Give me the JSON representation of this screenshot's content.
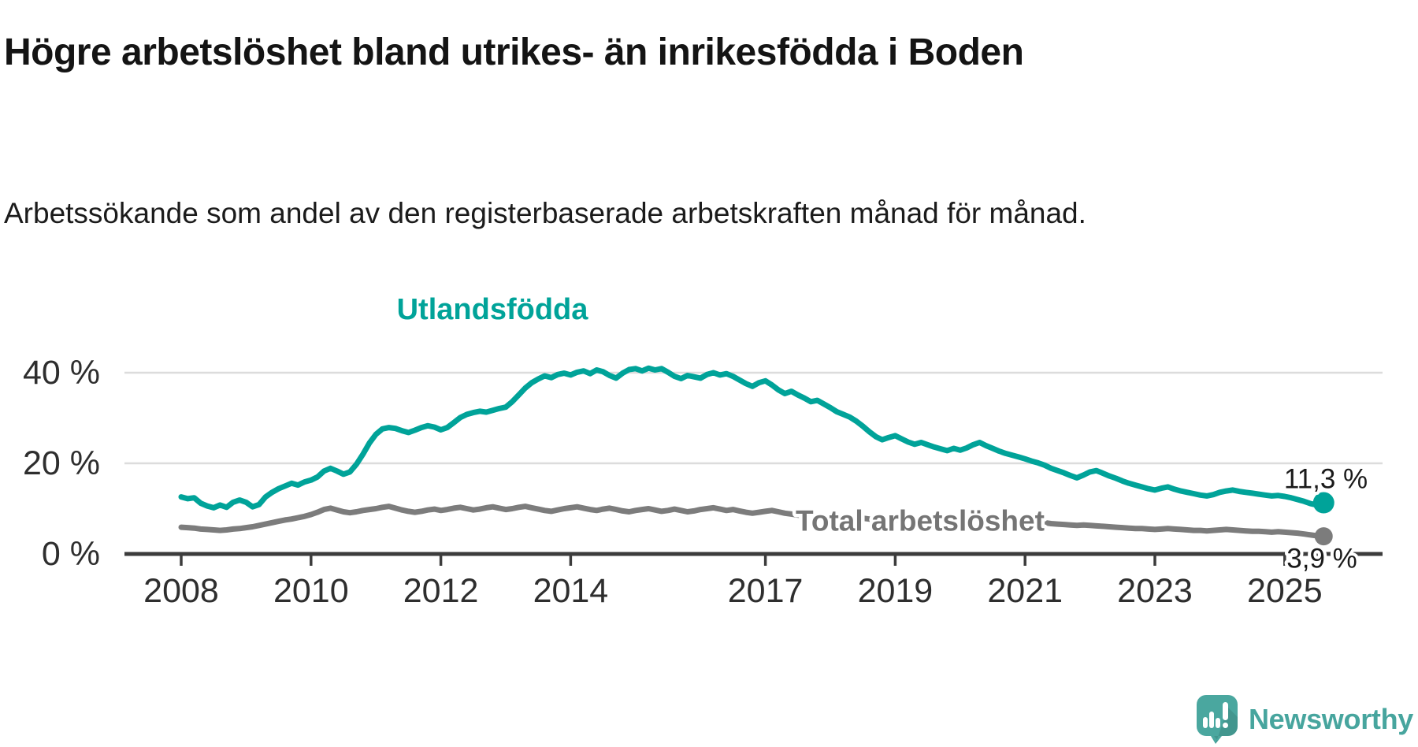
{
  "header": {
    "title": "Högre arbetslöshet bland utrikes- än inrikesfödda i Boden",
    "subtitle": "Arbetssökande som andel av den registerbaserade arbetskraften månad för månad."
  },
  "footer": {
    "brand": "Newsworthy",
    "brand_color": "#47a59e",
    "logo_icon": "newsworthy-speech-bubble-bar-chart-icon"
  },
  "chart_data": {
    "type": "line",
    "title": "Högre arbetslöshet bland utrikes- än inrikesfödda i Boden",
    "xlabel": "",
    "ylabel": "Arbetssökande som andel av den registerbaserade arbetskraften (%)",
    "grid": "horizontal",
    "legend_position": "inline-labels",
    "x_axis": {
      "unit": "year",
      "range": [
        2008,
        2025.6
      ],
      "ticks": [
        2008,
        2010,
        2012,
        2014,
        2017,
        2019,
        2021,
        2023,
        2025
      ]
    },
    "y_axis": {
      "unit": "%",
      "range": [
        0,
        45
      ],
      "ticks": [
        {
          "value": 0,
          "label": "0 %"
        },
        {
          "value": 20,
          "label": "20 %"
        },
        {
          "value": 40,
          "label": "40 %"
        }
      ]
    },
    "colors": {
      "grid": "#dcdcdc",
      "axis": "#3c3c3c",
      "tick_label": "#2e2e2e",
      "end_label": "#1a1a1a"
    },
    "series": [
      {
        "name": "Utlandsfödda",
        "color": "#00a399",
        "label_color": "#00a399",
        "end_label": "11,3 %",
        "end_value": 11.3,
        "x_start": 2008.0,
        "x_step": 0.1,
        "values": [
          12.6,
          12.2,
          12.4,
          11.2,
          10.6,
          10.2,
          10.8,
          10.3,
          11.4,
          11.9,
          11.4,
          10.4,
          10.9,
          12.6,
          13.6,
          14.4,
          15.0,
          15.6,
          15.2,
          15.9,
          16.3,
          17.0,
          18.3,
          18.9,
          18.3,
          17.6,
          18.1,
          19.8,
          22.0,
          24.5,
          26.4,
          27.6,
          27.9,
          27.7,
          27.2,
          26.8,
          27.3,
          27.9,
          28.3,
          28.0,
          27.4,
          27.9,
          29.0,
          30.1,
          30.8,
          31.2,
          31.5,
          31.3,
          31.7,
          32.1,
          32.4,
          33.6,
          35.1,
          36.6,
          37.8,
          38.6,
          39.3,
          38.9,
          39.6,
          39.9,
          39.5,
          40.1,
          40.4,
          39.8,
          40.6,
          40.2,
          39.4,
          38.8,
          39.9,
          40.7,
          40.9,
          40.4,
          41.0,
          40.6,
          40.9,
          40.1,
          39.2,
          38.7,
          39.4,
          39.1,
          38.8,
          39.6,
          40.0,
          39.5,
          39.8,
          39.2,
          38.4,
          37.6,
          37.0,
          37.8,
          38.2,
          37.3,
          36.2,
          35.4,
          35.9,
          35.1,
          34.4,
          33.6,
          33.9,
          33.1,
          32.3,
          31.4,
          30.8,
          30.2,
          29.3,
          28.2,
          27.0,
          25.9,
          25.2,
          25.7,
          26.1,
          25.4,
          24.7,
          24.2,
          24.6,
          24.1,
          23.6,
          23.2,
          22.8,
          23.3,
          22.9,
          23.4,
          24.1,
          24.6,
          23.9,
          23.3,
          22.7,
          22.2,
          21.8,
          21.4,
          21.0,
          20.5,
          20.1,
          19.6,
          18.9,
          18.4,
          17.9,
          17.3,
          16.8,
          17.4,
          18.1,
          18.4,
          17.8,
          17.2,
          16.7,
          16.1,
          15.6,
          15.2,
          14.8,
          14.4,
          14.1,
          14.5,
          14.8,
          14.3,
          13.9,
          13.6,
          13.3,
          13.0,
          12.8,
          13.1,
          13.6,
          13.9,
          14.1,
          13.8,
          13.6,
          13.4,
          13.2,
          13.0,
          12.8,
          12.9,
          12.7,
          12.4,
          12.0,
          11.6,
          11.1,
          10.8,
          11.3
        ]
      },
      {
        "name": "Total arbetslöshet",
        "color": "#7c7c7c",
        "label_color": "#757575",
        "end_label": "3,9 %",
        "end_value": 3.9,
        "x_start": 2008.0,
        "x_step": 0.1,
        "values": [
          5.9,
          5.8,
          5.7,
          5.5,
          5.4,
          5.3,
          5.2,
          5.3,
          5.5,
          5.6,
          5.8,
          6.0,
          6.3,
          6.6,
          6.9,
          7.2,
          7.5,
          7.7,
          8.0,
          8.3,
          8.7,
          9.2,
          9.8,
          10.1,
          9.7,
          9.3,
          9.1,
          9.3,
          9.6,
          9.8,
          10.0,
          10.3,
          10.5,
          10.1,
          9.7,
          9.4,
          9.2,
          9.4,
          9.7,
          9.9,
          9.6,
          9.8,
          10.1,
          10.3,
          10.0,
          9.7,
          9.9,
          10.2,
          10.4,
          10.1,
          9.8,
          10.0,
          10.3,
          10.5,
          10.2,
          9.9,
          9.6,
          9.4,
          9.7,
          10.0,
          10.2,
          10.4,
          10.1,
          9.8,
          9.6,
          9.9,
          10.1,
          9.8,
          9.5,
          9.3,
          9.6,
          9.8,
          10.0,
          9.7,
          9.4,
          9.6,
          9.9,
          9.6,
          9.3,
          9.5,
          9.8,
          10.0,
          10.2,
          9.9,
          9.6,
          9.8,
          9.5,
          9.2,
          9.0,
          9.2,
          9.4,
          9.6,
          9.3,
          9.0,
          8.8,
          8.6,
          8.4,
          8.3,
          8.5,
          8.3,
          8.1,
          8.3,
          8.5,
          8.2,
          8.0,
          7.9,
          7.7,
          7.6,
          7.8,
          7.7,
          7.5,
          7.7,
          7.9,
          7.7,
          7.5,
          7.4,
          7.3,
          7.4,
          7.3,
          7.4,
          7.5,
          7.7,
          7.9,
          8.1,
          7.9,
          7.8,
          7.6,
          7.5,
          7.4,
          7.3,
          7.2,
          7.1,
          7.0,
          6.9,
          6.7,
          6.6,
          6.5,
          6.4,
          6.3,
          6.4,
          6.3,
          6.2,
          6.1,
          6.0,
          5.9,
          5.8,
          5.7,
          5.6,
          5.6,
          5.5,
          5.4,
          5.5,
          5.6,
          5.5,
          5.4,
          5.3,
          5.2,
          5.2,
          5.1,
          5.2,
          5.3,
          5.4,
          5.3,
          5.2,
          5.1,
          5.0,
          5.0,
          4.9,
          4.8,
          4.9,
          4.8,
          4.7,
          4.6,
          4.4,
          4.2,
          4.0,
          3.9
        ]
      }
    ]
  }
}
